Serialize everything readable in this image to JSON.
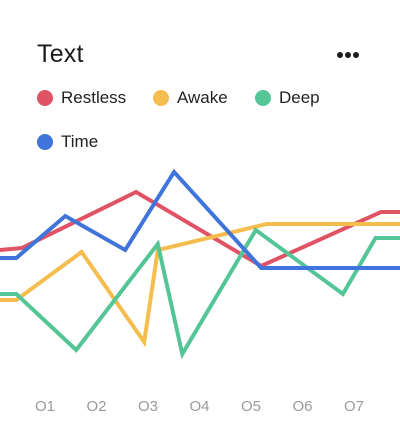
{
  "card": {
    "title": "Text",
    "menu_icon": "more-horizontal-icon"
  },
  "legend": [
    {
      "label": "Restless",
      "color": "#e05365"
    },
    {
      "label": "Awake",
      "color": "#f5bd4d"
    },
    {
      "label": "Deep",
      "color": "#54c596"
    },
    {
      "label": "Time",
      "color": "#3f74da"
    }
  ],
  "chart_data": {
    "type": "line",
    "categories": [
      "O1",
      "O2",
      "O3",
      "O4",
      "O5",
      "O6",
      "O7"
    ],
    "x_range": [
      0.0,
      7.35
    ],
    "y_range": [
      0,
      100
    ],
    "grid": false,
    "legend_position": "top",
    "series": [
      {
        "name": "Restless",
        "color": "#e05365",
        "points": [
          [
            0.0,
            55
          ],
          [
            0.4,
            56
          ],
          [
            2.5,
            84
          ],
          [
            4.8,
            47
          ],
          [
            7.0,
            74
          ],
          [
            7.35,
            74
          ]
        ]
      },
      {
        "name": "Awake",
        "color": "#f5bd4d",
        "points": [
          [
            0.0,
            30
          ],
          [
            0.3,
            30
          ],
          [
            1.5,
            54
          ],
          [
            2.65,
            9
          ],
          [
            2.9,
            55
          ],
          [
            4.9,
            68
          ],
          [
            7.35,
            68
          ]
        ]
      },
      {
        "name": "Deep",
        "color": "#54c596",
        "points": [
          [
            0.0,
            33
          ],
          [
            0.3,
            33
          ],
          [
            1.4,
            5
          ],
          [
            2.9,
            58
          ],
          [
            3.35,
            3
          ],
          [
            4.7,
            65
          ],
          [
            6.3,
            33
          ],
          [
            6.9,
            61
          ],
          [
            7.35,
            61
          ]
        ]
      },
      {
        "name": "Time",
        "color": "#3f74da",
        "points": [
          [
            0.0,
            51
          ],
          [
            0.3,
            51
          ],
          [
            1.2,
            72
          ],
          [
            2.3,
            55
          ],
          [
            3.2,
            94
          ],
          [
            4.8,
            46
          ],
          [
            7.35,
            46
          ]
        ]
      }
    ]
  }
}
